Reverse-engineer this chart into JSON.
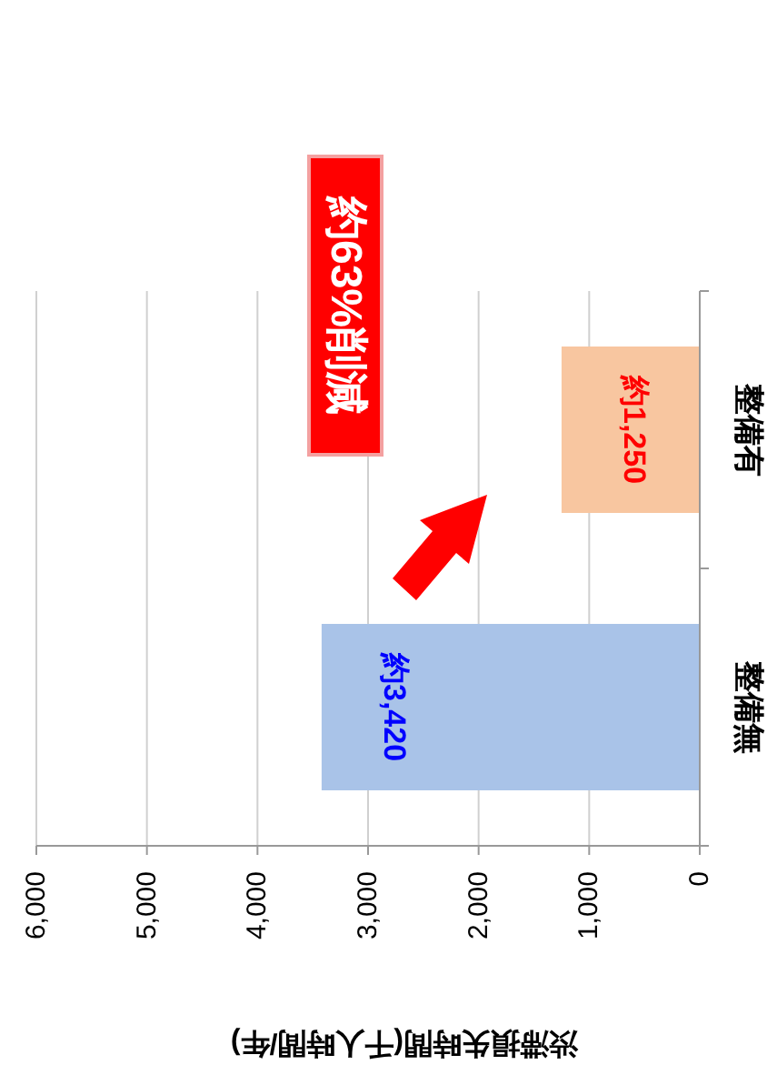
{
  "chart_data": {
    "type": "bar",
    "orientation": "horizontal",
    "categories": [
      "整備有",
      "整備無"
    ],
    "values": [
      1250,
      3420
    ],
    "colors": [
      "#f8c6a0",
      "#a9c3e8"
    ],
    "value_labels": [
      "約1,250",
      "約3,420"
    ],
    "xlim": [
      6000,
      0
    ],
    "xticks": [
      {
        "value": 6000,
        "label": "6,000"
      },
      {
        "value": 5000,
        "label": "5,000"
      },
      {
        "value": 4000,
        "label": "4,000"
      },
      {
        "value": 3000,
        "label": "3,000"
      },
      {
        "value": 2000,
        "label": "2,000"
      },
      {
        "value": 1000,
        "label": "1,000"
      },
      0
    ],
    "xlabel": "渋滞損失時間(千人時間/年)",
    "grid": "x",
    "annotations": [
      "約63%削減"
    ]
  }
}
